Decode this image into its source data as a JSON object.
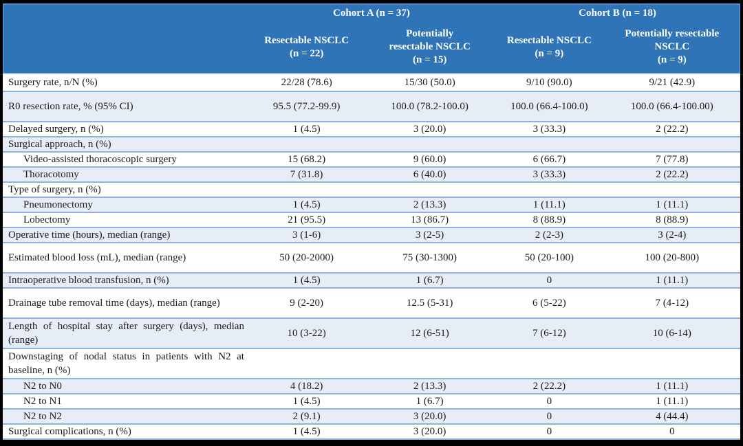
{
  "palette": {
    "frame": "#000000",
    "header_bg": "#2E74B6",
    "header_text": "#FFFFFF",
    "row_alt": "#E7EDF7",
    "separator": "#8EB4DC",
    "body_text": "#1A1A1A"
  },
  "table": {
    "header": {
      "groups": [
        "Cohort A (n = 37)",
        "Cohort B (n = 18)"
      ],
      "columns": [
        "Resectable NSCLC\n(n = 22)",
        "Potentially\nresectable NSCLC\n(n = 15)",
        "Resectable NSCLC\n(n = 9)",
        "Potentially resectable\nNSCLC\n(n = 9)"
      ]
    },
    "rows": [
      {
        "label": "Surgery rate, n/N (%)",
        "values": [
          "22/28 (78.6)",
          "15/30 (50.0)",
          "9/10 (90.0)",
          "9/21 (42.9)"
        ],
        "indent": false,
        "tall": false
      },
      {
        "label": "R0 resection rate, % (95% CI)",
        "values": [
          "95.5 (77.2-99.9)",
          "100.0 (78.2-100.0)",
          "100.0 (66.4-100.0)",
          "100.0 (66.4-100.00)"
        ],
        "indent": false,
        "tall": true
      },
      {
        "label": "Delayed surgery, n (%)",
        "values": [
          "1 (4.5)",
          "3 (20.0)",
          "3 (33.3)",
          "2 (22.2)"
        ],
        "indent": false,
        "tall": false
      },
      {
        "label": "Surgical approach, n (%)",
        "values": [
          "",
          "",
          "",
          ""
        ],
        "indent": false,
        "tall": false
      },
      {
        "label": "Video-assisted thoracoscopic surgery",
        "values": [
          "15 (68.2)",
          "9 (60.0)",
          "6 (66.7)",
          "7 (77.8)"
        ],
        "indent": true,
        "tall": false
      },
      {
        "label": "Thoracotomy",
        "values": [
          "7 (31.8)",
          "6 (40.0)",
          "3 (33.3)",
          "2 (22.2)"
        ],
        "indent": true,
        "tall": false
      },
      {
        "label": "Type of surgery, n (%)",
        "values": [
          "",
          "",
          "",
          ""
        ],
        "indent": false,
        "tall": false
      },
      {
        "label": "Pneumonectomy",
        "values": [
          "1 (4.5)",
          "2 (13.3)",
          "1 (11.1)",
          "1 (11.1)"
        ],
        "indent": true,
        "tall": false
      },
      {
        "label": "Lobectomy",
        "values": [
          "21 (95.5)",
          "13 (86.7)",
          "8 (88.9)",
          "8 (88.9)"
        ],
        "indent": true,
        "tall": false
      },
      {
        "label": "Operative time (hours), median (range)",
        "values": [
          "3 (1-6)",
          "3 (2-5)",
          "2 (2-3)",
          "3 (2-4)"
        ],
        "indent": false,
        "tall": false
      },
      {
        "label": "Estimated blood loss (mL), median (range)",
        "values": [
          "50 (20-2000)",
          "75 (30-1300)",
          "50 (20-100)",
          "100 (20-800)"
        ],
        "indent": false,
        "tall": true
      },
      {
        "label": "Intraoperative blood transfusion, n (%)",
        "values": [
          "1 (4.5)",
          "1 (6.7)",
          "0",
          "1 (11.1)"
        ],
        "indent": false,
        "tall": false
      },
      {
        "label": "Drainage tube removal time (days), median (range)",
        "values": [
          "9 (2-20)",
          "12.5 (5-31)",
          "6 (5-22)",
          "7 (4-12)"
        ],
        "indent": false,
        "tall": true
      },
      {
        "label": "Length of hospital stay after surgery (days), median (range)",
        "values": [
          "10 (3-22)",
          "12 (6-51)",
          "7 (6-12)",
          "10 (6-14)"
        ],
        "indent": false,
        "tall": true
      },
      {
        "label": "Downstaging of nodal status in patients with N2 at baseline, n (%)",
        "values": [
          "",
          "",
          "",
          ""
        ],
        "indent": false,
        "tall": true
      },
      {
        "label": "N2 to N0",
        "values": [
          "4 (18.2)",
          "2 (13.3)",
          "2 (22.2)",
          "1 (11.1)"
        ],
        "indent": true,
        "tall": false
      },
      {
        "label": "N2 to N1",
        "values": [
          "1 (4.5)",
          "1 (6.7)",
          "0",
          "1 (11.1)"
        ],
        "indent": true,
        "tall": false
      },
      {
        "label": "N2 to N2",
        "values": [
          "2 (9.1)",
          "3 (20.0)",
          "0",
          "4 (44.4)"
        ],
        "indent": true,
        "tall": false
      },
      {
        "label": "Surgical complications, n (%)",
        "values": [
          "1 (4.5)",
          "3 (20.0)",
          "0",
          "0"
        ],
        "indent": false,
        "tall": false
      }
    ]
  }
}
